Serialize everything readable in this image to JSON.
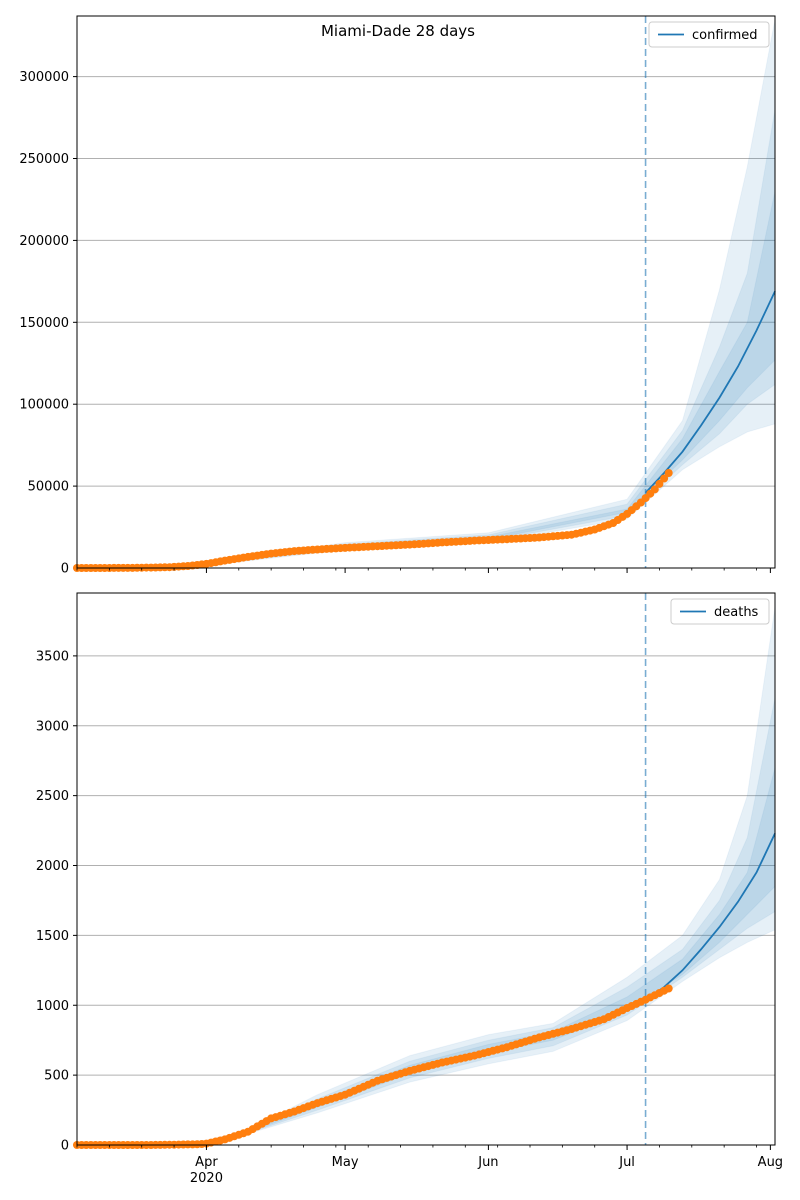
{
  "title": "Miami-Dade 28 days",
  "colors": {
    "band": "#1f77b4",
    "forecast_line": "#1f77b4",
    "observed_points": "#ff7f0e",
    "vline": "#1f77b4",
    "grid": "#b0b0b0"
  },
  "shared_x": {
    "type": "date",
    "xlim": [
      "2020-03-04",
      "2020-08-02"
    ],
    "month_ticks": [
      {
        "date": "2020-04-01",
        "label": "Apr",
        "year": "2020"
      },
      {
        "date": "2020-05-01",
        "label": "May",
        "year": ""
      },
      {
        "date": "2020-06-01",
        "label": "Jun",
        "year": ""
      },
      {
        "date": "2020-07-01",
        "label": "Jul",
        "year": ""
      },
      {
        "date": "2020-08-01",
        "label": "Aug",
        "year": ""
      }
    ],
    "forecast_start": "2020-07-05"
  },
  "chart_data": [
    {
      "type": "line",
      "legend": "confirmed",
      "legend_position": "top-right",
      "grid": "horizontal",
      "ylim": [
        0,
        337000
      ],
      "yticks": [
        0,
        50000,
        100000,
        150000,
        200000,
        250000,
        300000
      ],
      "observed": {
        "x": [
          "2020-03-04",
          "2020-03-10",
          "2020-03-17",
          "2020-03-24",
          "2020-03-28",
          "2020-04-01",
          "2020-04-05",
          "2020-04-10",
          "2020-04-15",
          "2020-04-20",
          "2020-04-25",
          "2020-05-01",
          "2020-05-08",
          "2020-05-15",
          "2020-05-22",
          "2020-05-29",
          "2020-06-05",
          "2020-06-12",
          "2020-06-19",
          "2020-06-24",
          "2020-06-28",
          "2020-07-01",
          "2020-07-04",
          "2020-07-07",
          "2020-07-10"
        ],
        "y": [
          0,
          10,
          100,
          500,
          1200,
          2500,
          4500,
          6800,
          8800,
          10300,
          11300,
          12300,
          13300,
          14300,
          15600,
          16700,
          17600,
          18600,
          20300,
          23500,
          27500,
          33000,
          40000,
          48000,
          58000
        ]
      },
      "forecast": {
        "x": [
          "2020-07-05",
          "2020-07-09",
          "2020-07-13",
          "2020-07-17",
          "2020-07-21",
          "2020-07-25",
          "2020-07-29",
          "2020-08-02"
        ],
        "median": [
          46000,
          58000,
          71000,
          87000,
          104000,
          123000,
          145000,
          169000
        ],
        "bands": [
          {
            "x": [
              "2020-03-10",
              "2020-04-01",
              "2020-05-01",
              "2020-06-01",
              "2020-07-01",
              "2020-07-13",
              "2020-07-21",
              "2020-07-27",
              "2020-08-02"
            ],
            "lower": [
              0,
              1500,
              11000,
              15500,
              30000,
              60000,
              74000,
              83000,
              88000
            ],
            "upper": [
              500,
              3500,
              15500,
              21500,
              42000,
              90000,
              170000,
              245000,
              335000
            ]
          },
          {
            "x": [
              "2020-03-10",
              "2020-04-01",
              "2020-05-01",
              "2020-06-01",
              "2020-07-01",
              "2020-07-13",
              "2020-07-21",
              "2020-07-27",
              "2020-08-02"
            ],
            "lower": [
              0,
              2000,
              11800,
              16500,
              32000,
              63000,
              82000,
              100000,
              112000
            ],
            "upper": [
              400,
              3000,
              14600,
              20200,
              39000,
              84000,
              135000,
              180000,
              280000
            ]
          },
          {
            "x": [
              "2020-03-10",
              "2020-04-01",
              "2020-05-01",
              "2020-06-01",
              "2020-07-01",
              "2020-07-13",
              "2020-07-21",
              "2020-07-27",
              "2020-08-02"
            ],
            "lower": [
              0,
              2300,
              12400,
              17400,
              34000,
              66000,
              90000,
              110000,
              127000
            ],
            "upper": [
              300,
              2700,
              13700,
              19000,
              36000,
              79000,
              120000,
              150000,
              230000
            ]
          }
        ]
      }
    },
    {
      "type": "line",
      "legend": "deaths",
      "legend_position": "top-right",
      "grid": "horizontal",
      "ylim": [
        0,
        3950
      ],
      "yticks": [
        0,
        500,
        1000,
        1500,
        2000,
        2500,
        3000,
        3500
      ],
      "observed": {
        "x": [
          "2020-03-04",
          "2020-03-20",
          "2020-03-30",
          "2020-04-01",
          "2020-04-05",
          "2020-04-10",
          "2020-04-15",
          "2020-04-20",
          "2020-04-25",
          "2020-05-01",
          "2020-05-08",
          "2020-05-15",
          "2020-05-22",
          "2020-05-29",
          "2020-06-05",
          "2020-06-12",
          "2020-06-19",
          "2020-06-26",
          "2020-07-01",
          "2020-07-05",
          "2020-07-10"
        ],
        "y": [
          0,
          0,
          5,
          10,
          40,
          95,
          190,
          240,
          300,
          360,
          460,
          530,
          590,
          640,
          700,
          770,
          830,
          900,
          980,
          1040,
          1120
        ]
      },
      "forecast": {
        "x": [
          "2020-07-05",
          "2020-07-09",
          "2020-07-13",
          "2020-07-17",
          "2020-07-21",
          "2020-07-25",
          "2020-07-29",
          "2020-08-02"
        ],
        "median": [
          1040,
          1130,
          1250,
          1400,
          1560,
          1740,
          1950,
          2230
        ],
        "bands": [
          {
            "x": [
              "2020-03-30",
              "2020-04-10",
              "2020-04-25",
              "2020-05-15",
              "2020-06-01",
              "2020-06-15",
              "2020-07-01",
              "2020-07-13",
              "2020-07-21",
              "2020-07-27",
              "2020-08-02"
            ],
            "lower": [
              0,
              80,
              230,
              450,
              580,
              670,
              890,
              1170,
              1340,
              1450,
              1540
            ],
            "upper": [
              10,
              110,
              360,
              640,
              790,
              870,
              1200,
              1500,
              1900,
              2500,
              3850
            ]
          },
          {
            "x": [
              "2020-03-30",
              "2020-04-10",
              "2020-04-25",
              "2020-05-15",
              "2020-06-01",
              "2020-06-15",
              "2020-07-01",
              "2020-07-13",
              "2020-07-21",
              "2020-07-27",
              "2020-08-02"
            ],
            "lower": [
              0,
              85,
              250,
              480,
              620,
              710,
              930,
              1200,
              1400,
              1550,
              1670
            ],
            "upper": [
              8,
              105,
              330,
              600,
              750,
              840,
              1130,
              1400,
              1750,
              2200,
              3200
            ]
          },
          {
            "x": [
              "2020-03-30",
              "2020-04-10",
              "2020-04-25",
              "2020-05-15",
              "2020-06-01",
              "2020-06-15",
              "2020-07-01",
              "2020-07-13",
              "2020-07-21",
              "2020-07-27",
              "2020-08-02"
            ],
            "lower": [
              1,
              90,
              270,
              510,
              660,
              750,
              960,
              1220,
              1450,
              1650,
              1850
            ],
            "upper": [
              6,
              100,
              310,
              570,
              720,
              810,
              1060,
              1330,
              1650,
              1950,
              2700
            ]
          }
        ]
      }
    }
  ]
}
